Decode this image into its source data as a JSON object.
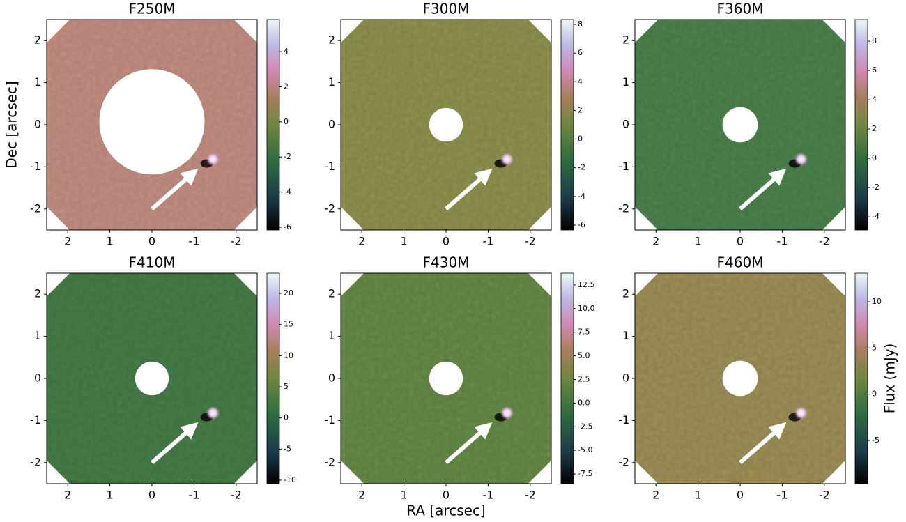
{
  "chart_data": [
    {
      "type": "image",
      "title": "F250M",
      "ylabel": "Dec [arcsec]",
      "color": "#b57f74",
      "xlim": [
        2.5,
        -2.5
      ],
      "ylim": [
        -2.5,
        2.5
      ],
      "xticks": [
        2,
        1,
        0,
        -1,
        -2
      ],
      "yticks": [
        -2,
        -1,
        0,
        1,
        2
      ],
      "clim": [
        -6.16,
        5.83
      ],
      "cticks": [
        -6,
        -4,
        -2,
        0,
        2,
        4
      ]
    },
    {
      "type": "image",
      "title": "F300M",
      "color": "#7f8244",
      "xlim": [
        2.5,
        -2.5
      ],
      "ylim": [
        -2.5,
        2.5
      ],
      "xticks": [
        2,
        1,
        0,
        -1,
        -2
      ],
      "yticks": [
        -2,
        -1,
        0,
        1,
        2
      ],
      "clim": [
        -6.34,
        8.34
      ],
      "cticks": [
        -6,
        -4,
        -2,
        0,
        2,
        4,
        6,
        8
      ]
    },
    {
      "type": "image",
      "title": "F360M",
      "color": "#437444",
      "xlim": [
        2.5,
        -2.5
      ],
      "ylim": [
        -2.5,
        2.5
      ],
      "xticks": [
        2,
        1,
        0,
        -1,
        -2
      ],
      "yticks": [
        -2,
        -1,
        0,
        1,
        2
      ],
      "clim": [
        -4.9,
        9.48
      ],
      "cticks": [
        -4,
        -2,
        0,
        2,
        4,
        6,
        8
      ]
    },
    {
      "type": "image",
      "title": "F410M",
      "color": "#3e6f40",
      "xlim": [
        2.5,
        -2.5
      ],
      "ylim": [
        -2.5,
        2.5
      ],
      "xticks": [
        2,
        1,
        0,
        -1,
        -2
      ],
      "yticks": [
        -2,
        -1,
        0,
        1,
        2
      ],
      "clim": [
        -10.56,
        23.25
      ],
      "cticks": [
        -10,
        -5,
        0,
        5,
        10,
        15,
        20
      ]
    },
    {
      "type": "image",
      "title": "F430M",
      "xlabel": "RA [arcsec]",
      "color": "#5a7c3e",
      "xlim": [
        2.5,
        -2.5
      ],
      "ylim": [
        -2.5,
        2.5
      ],
      "xticks": [
        2,
        1,
        0,
        -1,
        -2
      ],
      "yticks": [
        -2,
        -1,
        0,
        1,
        2
      ],
      "clim": [
        -8.53,
        13.75
      ],
      "cticks": [
        -7.5,
        {
          "value": -5,
          "label": "-5.0"
        },
        -2.5,
        {
          "value": 0,
          "label": "0.0"
        },
        2.5,
        {
          "value": 5,
          "label": "5.0"
        },
        7.5,
        {
          "value": 10,
          "label": "10.0"
        },
        12.5
      ]
    },
    {
      "type": "image",
      "title": "F460M",
      "colorbar_label": "Flux (mJy)",
      "color": "#8e804c",
      "xlim": [
        2.5,
        -2.5
      ],
      "ylim": [
        -2.5,
        2.5
      ],
      "xticks": [
        2,
        1,
        0,
        -1,
        -2
      ],
      "yticks": [
        -2,
        -1,
        0,
        1,
        2
      ],
      "clim": [
        -9.67,
        13.09
      ],
      "cticks": [
        -5,
        0,
        5,
        10
      ]
    }
  ]
}
